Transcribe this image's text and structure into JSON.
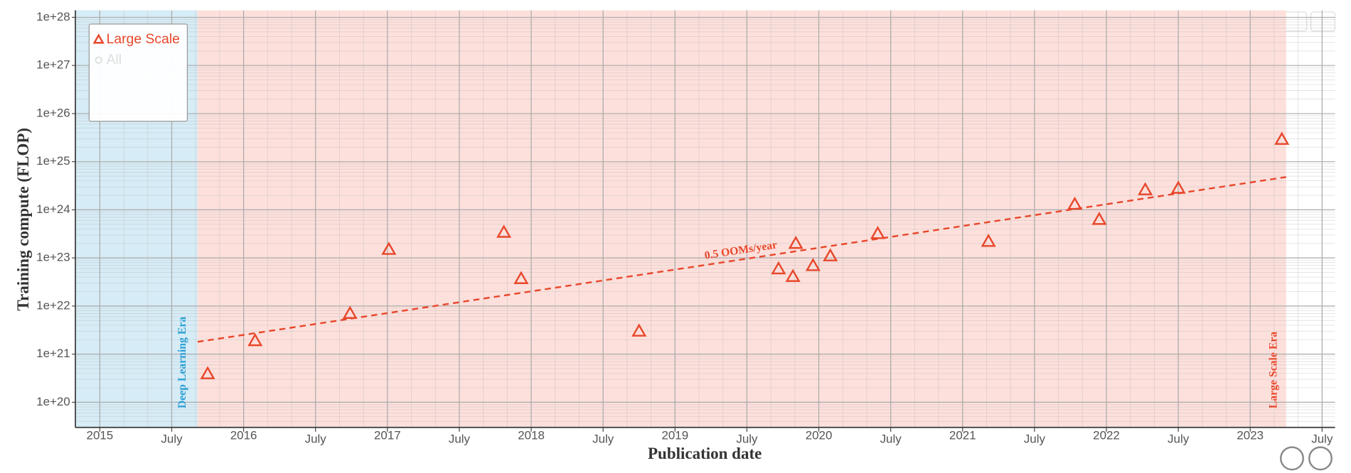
{
  "chart_data": {
    "type": "scatter",
    "x_label": "Publication date",
    "y_label": "Training compute (FLOP)",
    "log_y": true,
    "grid": true,
    "minor_grid": true,
    "legend": "top-left",
    "xlim": [
      2014.83,
      2023.59
    ],
    "ylim": [
      3e+19,
      1.4e+28
    ],
    "xticks": [
      2015,
      {
        "value": 2015.5,
        "label": "July"
      },
      2016,
      {
        "value": 2016.5,
        "label": "July"
      },
      2017,
      {
        "value": 2017.5,
        "label": "July"
      },
      2018,
      {
        "value": 2018.5,
        "label": "July"
      },
      2019,
      {
        "value": 2019.5,
        "label": "July"
      },
      2020,
      {
        "value": 2020.5,
        "label": "July"
      },
      2021,
      {
        "value": 2021.5,
        "label": "July"
      },
      2022,
      {
        "value": 2022.5,
        "label": "July"
      },
      2023,
      {
        "value": 2023.5,
        "label": "July"
      }
    ],
    "yticks": [
      {
        "value": 1e+20,
        "label": "1e+20"
      },
      {
        "value": 1e+21,
        "label": "1e+21"
      },
      {
        "value": 1e+22,
        "label": "1e+22"
      },
      {
        "value": 1e+23,
        "label": "1e+23"
      },
      {
        "value": 1e+24,
        "label": "1e+24"
      },
      {
        "value": 1e+25,
        "label": "1e+25"
      },
      {
        "value": 1e+26,
        "label": "1e+26"
      },
      {
        "value": 1e+27,
        "label": "1e+27"
      },
      {
        "value": 1e+28,
        "label": "1e+28"
      }
    ],
    "regions": [
      {
        "name": "Deep Learning Era",
        "x": [
          2014.83,
          2015.68
        ],
        "color": "#d6ecf6",
        "label_color": "#2a9fd6"
      },
      {
        "name": "Large Scale Era",
        "x": [
          2015.68,
          2023.25
        ],
        "color": "#fde0dc",
        "label_color": "#e8472b"
      }
    ],
    "series": [
      {
        "name": "Large Scale",
        "color": "#e8472b",
        "marker": "triangle",
        "x": [
          2015.75,
          2016.08,
          2016.74,
          2017.01,
          2017.81,
          2017.93,
          2018.75,
          2019.72,
          2019.82,
          2019.84,
          2019.96,
          2020.08,
          2020.41,
          2021.18,
          2021.78,
          2021.95,
          2022.27,
          2022.5,
          2023.22
        ],
        "values": [
          3.9e+20,
          1.9e+21,
          7e+21,
          1.5e+23,
          3.4e+23,
          3.7e+22,
          3e+21,
          5.9e+22,
          4.1e+22,
          2e+23,
          6.9e+22,
          1.1e+23,
          3.2e+23,
          2.2e+23,
          1.3e+24,
          6.3e+23,
          2.6e+24,
          2.8e+24,
          2.9e+25
        ]
      },
      {
        "name": "All",
        "color": "#cccccc",
        "marker": "circle",
        "visible": false,
        "x": [],
        "values": []
      }
    ],
    "trend": {
      "label": "0.5 OOMs/year",
      "color": "#e8472b",
      "x": [
        2015.68,
        2023.25
      ],
      "values": [
        1.8e+21,
        4.8e+24
      ]
    }
  }
}
